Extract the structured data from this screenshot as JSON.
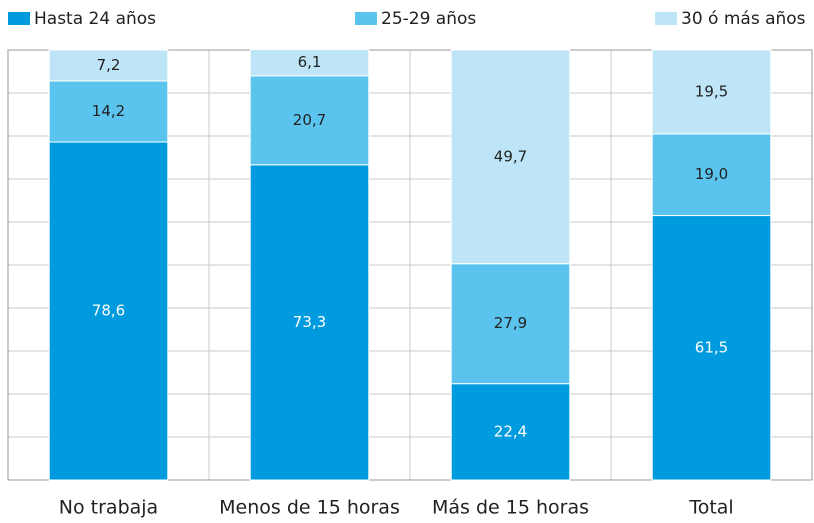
{
  "chart_data": {
    "type": "stacked_bar",
    "categories": [
      "No trabaja",
      "Menos de 15 horas",
      "Más de 15 horas",
      "Total"
    ],
    "series": [
      {
        "name": "Hasta 24 años",
        "color": "#009bdf",
        "values": [
          78.6,
          73.3,
          22.4,
          61.5
        ],
        "value_labels": [
          "78,6",
          "73,3",
          "22,4",
          "61,5"
        ]
      },
      {
        "name": "25-29 años",
        "color": "#5bc4ee",
        "values": [
          14.2,
          20.7,
          27.9,
          19.0
        ],
        "value_labels": [
          "14,2",
          "20,7",
          "27,9",
          "19,0"
        ]
      },
      {
        "name": "30 ó más años",
        "color": "#bee5f7",
        "values": [
          7.2,
          6.1,
          49.7,
          19.5
        ],
        "value_labels": [
          "7,2",
          "6,1",
          "49,7",
          "19,5"
        ]
      }
    ],
    "ylim": [
      0,
      100
    ],
    "yticks": [
      0,
      10,
      20,
      30,
      40,
      50,
      60,
      70,
      80,
      90,
      100
    ],
    "grid": true,
    "legend": "top"
  }
}
